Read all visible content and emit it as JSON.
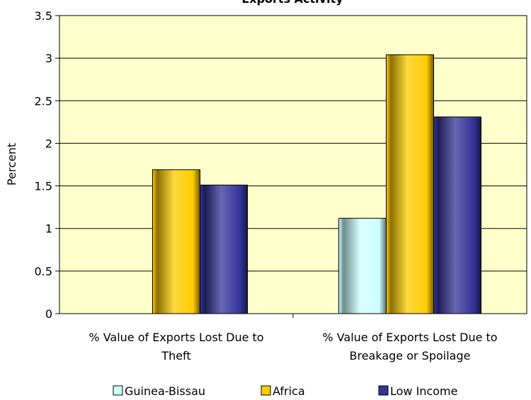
{
  "chart_data": {
    "type": "bar",
    "title": "Exports Activity",
    "ylabel": "Percent",
    "xlabel": "",
    "ylim": [
      0,
      3.5
    ],
    "yticks": [
      0,
      0.5,
      1,
      1.5,
      2,
      2.5,
      3,
      3.5
    ],
    "grid": true,
    "legend_position": "bottom",
    "categories": [
      [
        "% Value of Exports Lost Due to",
        "Theft"
      ],
      [
        "% Value of Exports Lost Due to",
        "Breakage or Spoilage"
      ]
    ],
    "series": [
      {
        "name": "Guinea-Bissau",
        "values": [
          null,
          1.12
        ],
        "color": "#ccffff"
      },
      {
        "name": "Africa",
        "values": [
          1.69,
          3.04
        ],
        "color": "#ffcc00"
      },
      {
        "name": "Low Income",
        "values": [
          1.51,
          2.31
        ],
        "color": "#333399"
      }
    ],
    "colors": {
      "plot_background": "#ffffcc",
      "gridline": "#000000"
    }
  }
}
